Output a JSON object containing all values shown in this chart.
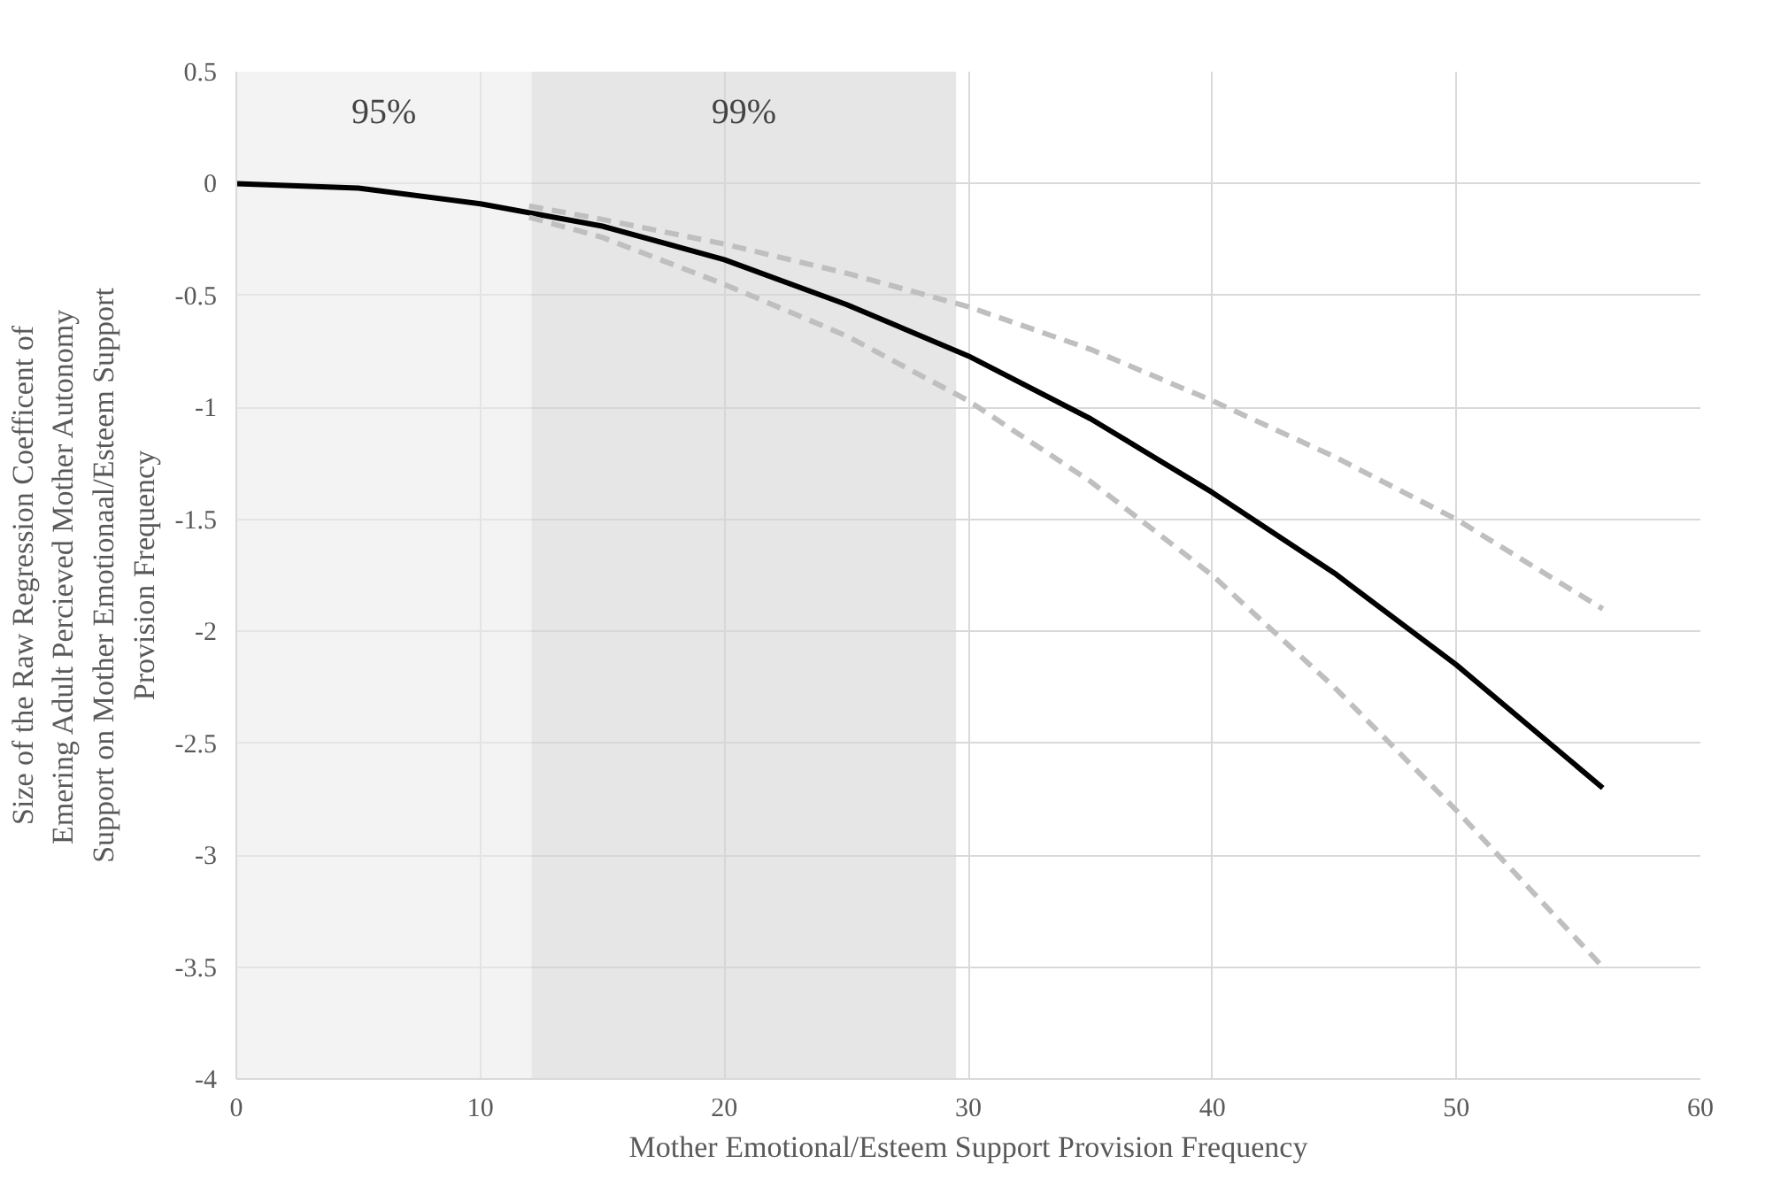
{
  "chart_data": {
    "type": "line",
    "xlabel": "Mother Emotional/Esteem Support Provision Frequency",
    "ylabel": "Size of the Raw Regression Coefficent of\nEmering Adult Percieved Mother Autonomy\nSupport on Mother Emotionaal/Esteem Support\nProvision Frequency",
    "xlim": [
      0,
      60
    ],
    "xticks": [
      0,
      10,
      20,
      30,
      40,
      50,
      60
    ],
    "ylim": [
      -4,
      0.5
    ],
    "yticks": [
      -4,
      -3.5,
      -3,
      -2.5,
      -2,
      -1.5,
      -1,
      -0.5,
      0,
      0.5
    ],
    "grid": true,
    "marker": "none",
    "series": [
      {
        "color": "#000000",
        "line_style": "solid",
        "x": [
          0,
          5,
          10,
          15,
          20,
          25,
          30,
          35,
          40,
          45,
          50,
          56
        ],
        "values": [
          0,
          -0.02,
          -0.09,
          -0.19,
          -0.34,
          -0.54,
          -0.77,
          -1.05,
          -1.38,
          -1.74,
          -2.15,
          -2.7
        ]
      },
      {
        "color": "#bfbfbf",
        "line_style": "dashed",
        "x": [
          12,
          15,
          20,
          25,
          30,
          35,
          40,
          45,
          50,
          56
        ],
        "values": [
          -0.1,
          -0.16,
          -0.27,
          -0.4,
          -0.55,
          -0.74,
          -0.97,
          -1.22,
          -1.5,
          -1.9
        ]
      },
      {
        "color": "#bfbfbf",
        "line_style": "dashed",
        "x": [
          12,
          15,
          20,
          25,
          30,
          35,
          40,
          45,
          50,
          56
        ],
        "values": [
          -0.15,
          -0.24,
          -0.45,
          -0.68,
          -0.97,
          -1.33,
          -1.75,
          -2.25,
          -2.8,
          -3.5
        ]
      }
    ],
    "bands": [
      {
        "axis": "x",
        "from": 0,
        "to": 12.1,
        "label": "95%",
        "color": "#ebebeb"
      },
      {
        "axis": "x",
        "from": 12.1,
        "to": 29.5,
        "label": "99%",
        "color": "#d6d6d6"
      }
    ]
  }
}
